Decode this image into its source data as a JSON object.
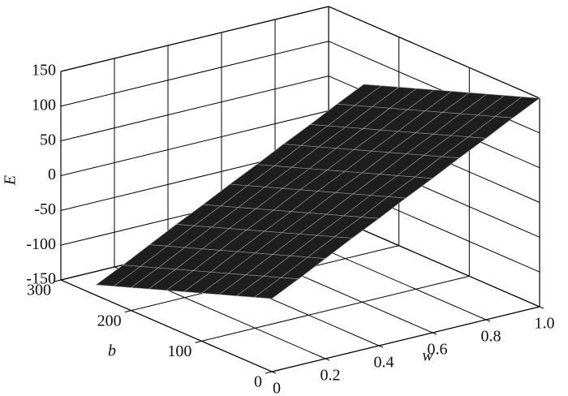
{
  "chart_data": {
    "type": "surface",
    "xlabel": "w",
    "ylabel": "b",
    "zlabel": "E",
    "x": [
      0,
      0.1,
      0.2,
      0.3,
      0.4,
      0.5,
      0.6,
      0.7,
      0.8,
      0.9,
      1
    ],
    "y": [
      0,
      25,
      50,
      75,
      100,
      125,
      150,
      175,
      200,
      225,
      250
    ],
    "z": [
      [
        -45,
        -26,
        -6,
        14,
        33,
        53,
        72,
        92,
        111,
        131,
        150
      ],
      [
        -54,
        -35,
        -15,
        5,
        24,
        44,
        63,
        83,
        102,
        122,
        141
      ],
      [
        -63,
        -44,
        -24,
        -4,
        15,
        35,
        54,
        74,
        93,
        113,
        132
      ],
      [
        -72,
        -53,
        -33,
        -13,
        6,
        26,
        45,
        65,
        84,
        104,
        123
      ],
      [
        -81,
        -62,
        -42,
        -22,
        -3,
        17,
        36,
        56,
        75,
        95,
        114
      ],
      [
        -90,
        -71,
        -51,
        -31,
        -12,
        8,
        27,
        47,
        66,
        86,
        105
      ],
      [
        -99,
        -80,
        -60,
        -40,
        -21,
        -1,
        18,
        38,
        57,
        77,
        96
      ],
      [
        -108,
        -89,
        -69,
        -49,
        -30,
        -10,
        9,
        29,
        48,
        68,
        87
      ],
      [
        -117,
        -98,
        -78,
        -58,
        -39,
        -19,
        0,
        20,
        39,
        59,
        78
      ],
      [
        -126,
        -107,
        -87,
        -67,
        -48,
        -28,
        -9,
        11,
        30,
        50,
        69
      ],
      [
        -135,
        -116,
        -96,
        -76,
        -57,
        -37,
        -18,
        2,
        21,
        41,
        60
      ]
    ],
    "xlim": [
      0,
      1
    ],
    "xticks": [
      0,
      0.2,
      0.4,
      0.6,
      0.8,
      {
        "value": 1,
        "label": "1.0"
      }
    ],
    "ylim": [
      0,
      300
    ],
    "yticks": [
      0,
      100,
      200,
      300
    ],
    "zlim": [
      -150,
      150
    ],
    "zticks": [
      -150,
      -100,
      -50,
      0,
      50,
      100,
      150
    ],
    "grid": true,
    "color": "#1e1e1e"
  }
}
